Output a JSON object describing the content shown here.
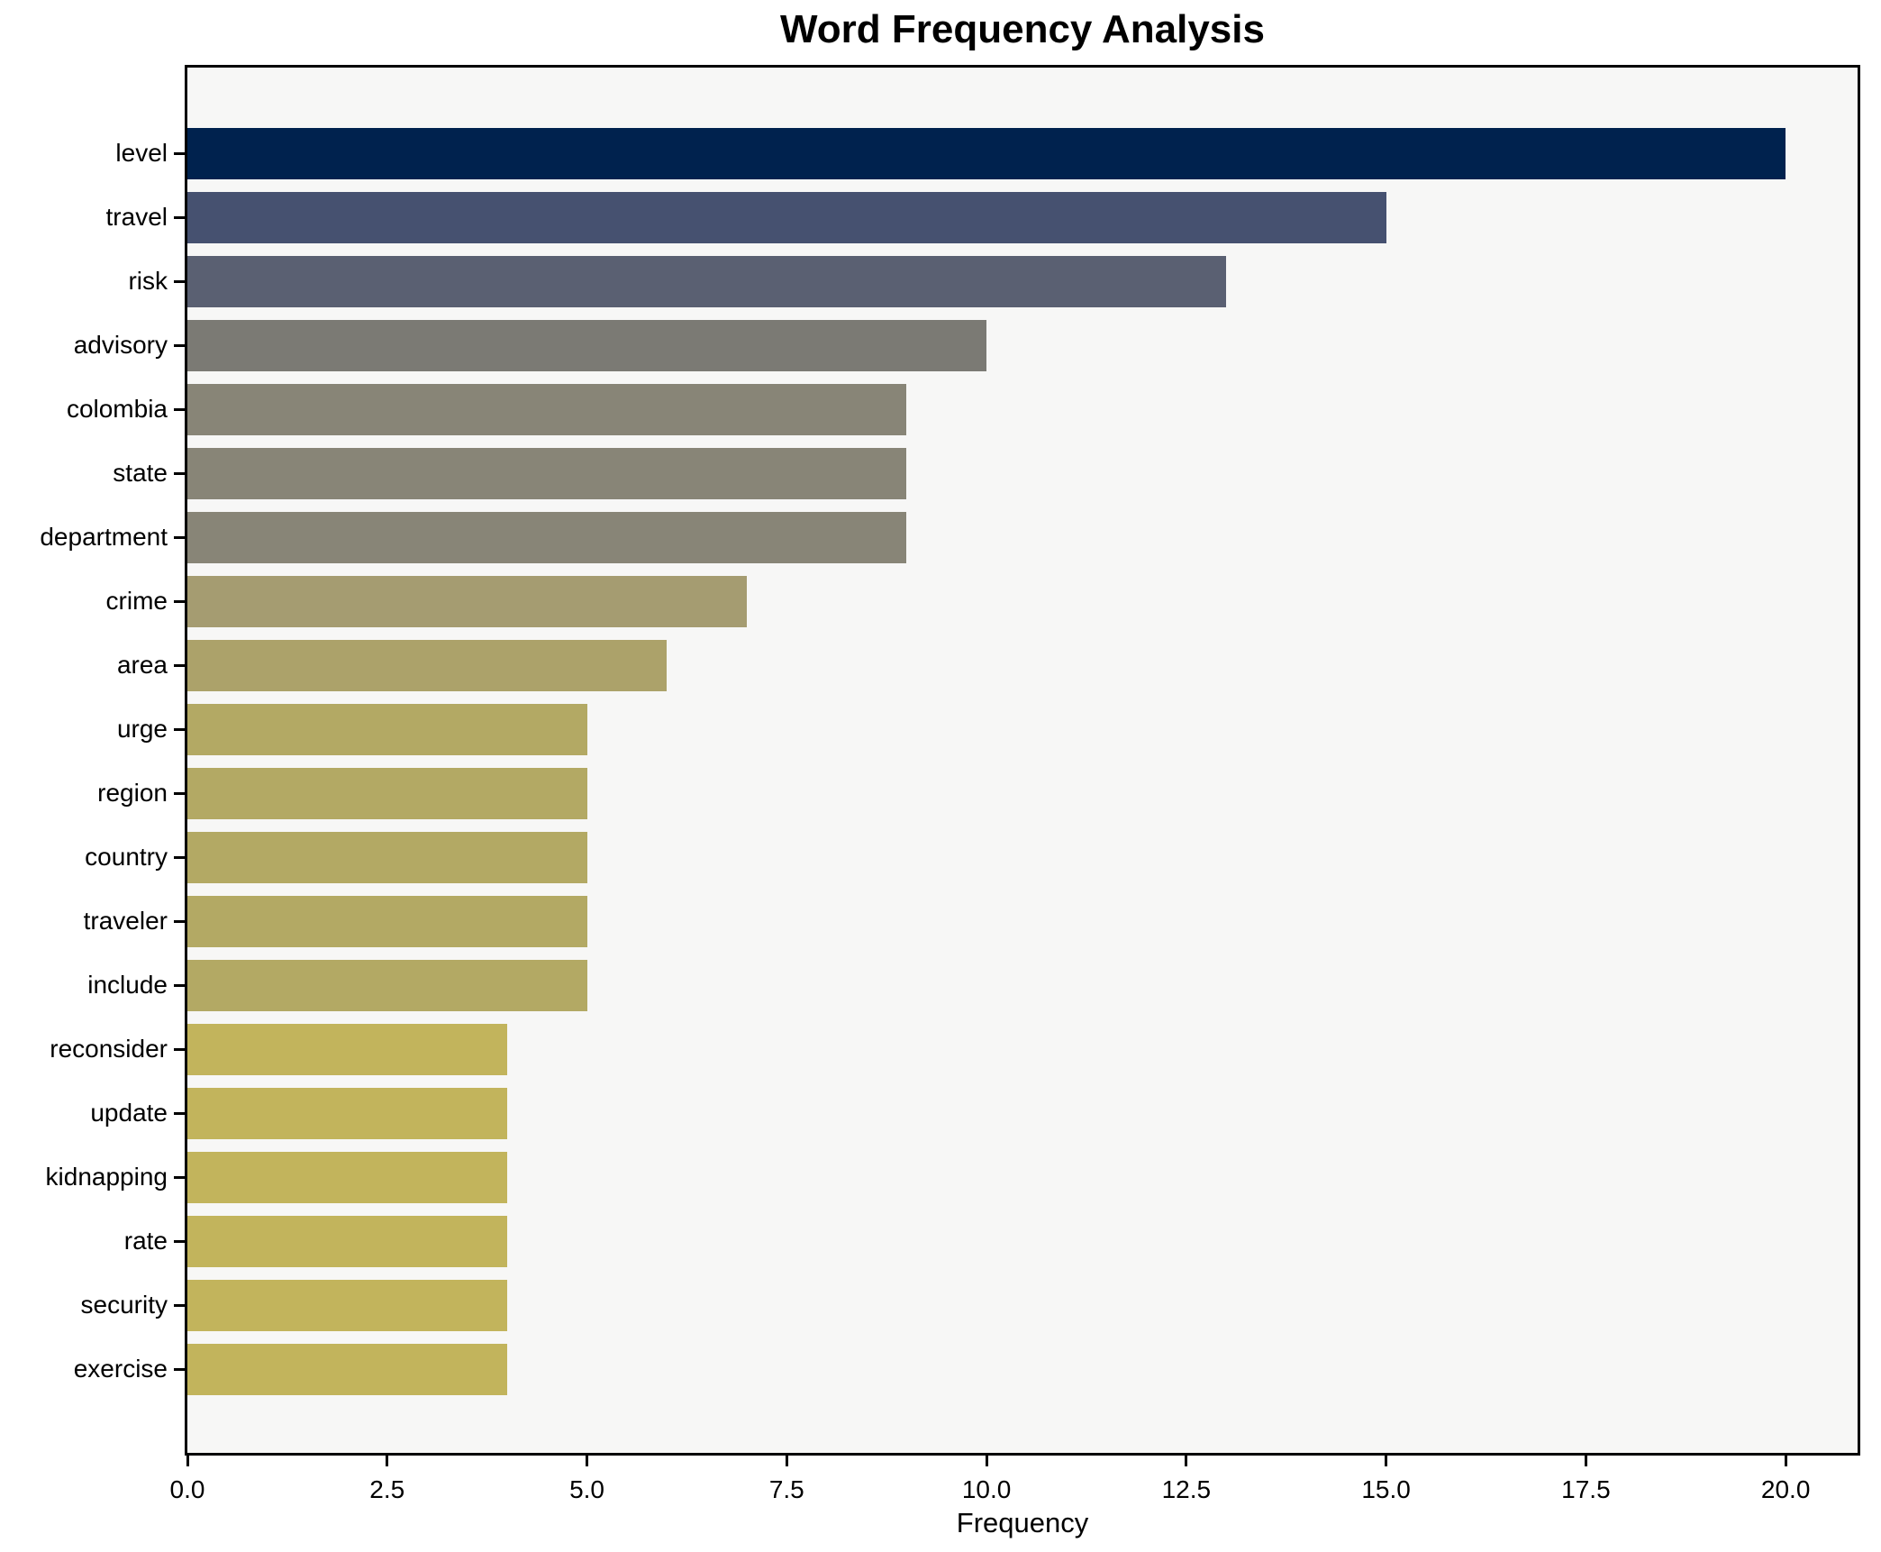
{
  "title": "Word Frequency Analysis",
  "chart_data": {
    "type": "bar",
    "orientation": "horizontal",
    "title": "Word Frequency Analysis",
    "xlabel": "Frequency",
    "ylabel": "",
    "categories": [
      "level",
      "travel",
      "risk",
      "advisory",
      "colombia",
      "state",
      "department",
      "crime",
      "area",
      "urge",
      "region",
      "country",
      "traveler",
      "include",
      "reconsider",
      "update",
      "kidnapping",
      "rate",
      "security",
      "exercise"
    ],
    "values": [
      20,
      15,
      13,
      10,
      9,
      9,
      9,
      7,
      6,
      5,
      5,
      5,
      5,
      5,
      4,
      4,
      4,
      4,
      4,
      4
    ],
    "bar_colors": [
      "#00224e",
      "#465170",
      "#5a6072",
      "#7b7a74",
      "#888577",
      "#888577",
      "#888577",
      "#a59c71",
      "#aca26a",
      "#b3a964",
      "#b3a964",
      "#b3a964",
      "#b3a964",
      "#b3a964",
      "#c2b45c",
      "#c2b45c",
      "#c2b45c",
      "#c2b45c",
      "#c2b45c",
      "#c2b45c"
    ],
    "xlim": [
      0,
      20.9
    ],
    "xticks": [
      0,
      2.5,
      5,
      7.5,
      10,
      12.5,
      15,
      17.5,
      20
    ],
    "xtick_labels": [
      "0.0",
      "2.5",
      "5.0",
      "7.5",
      "10.0",
      "12.5",
      "15.0",
      "17.5",
      "20.0"
    ],
    "grid": false,
    "legend": null,
    "plot_background": "#f7f7f6",
    "figure_background": "#ffffff",
    "frame_color": "#000000"
  }
}
